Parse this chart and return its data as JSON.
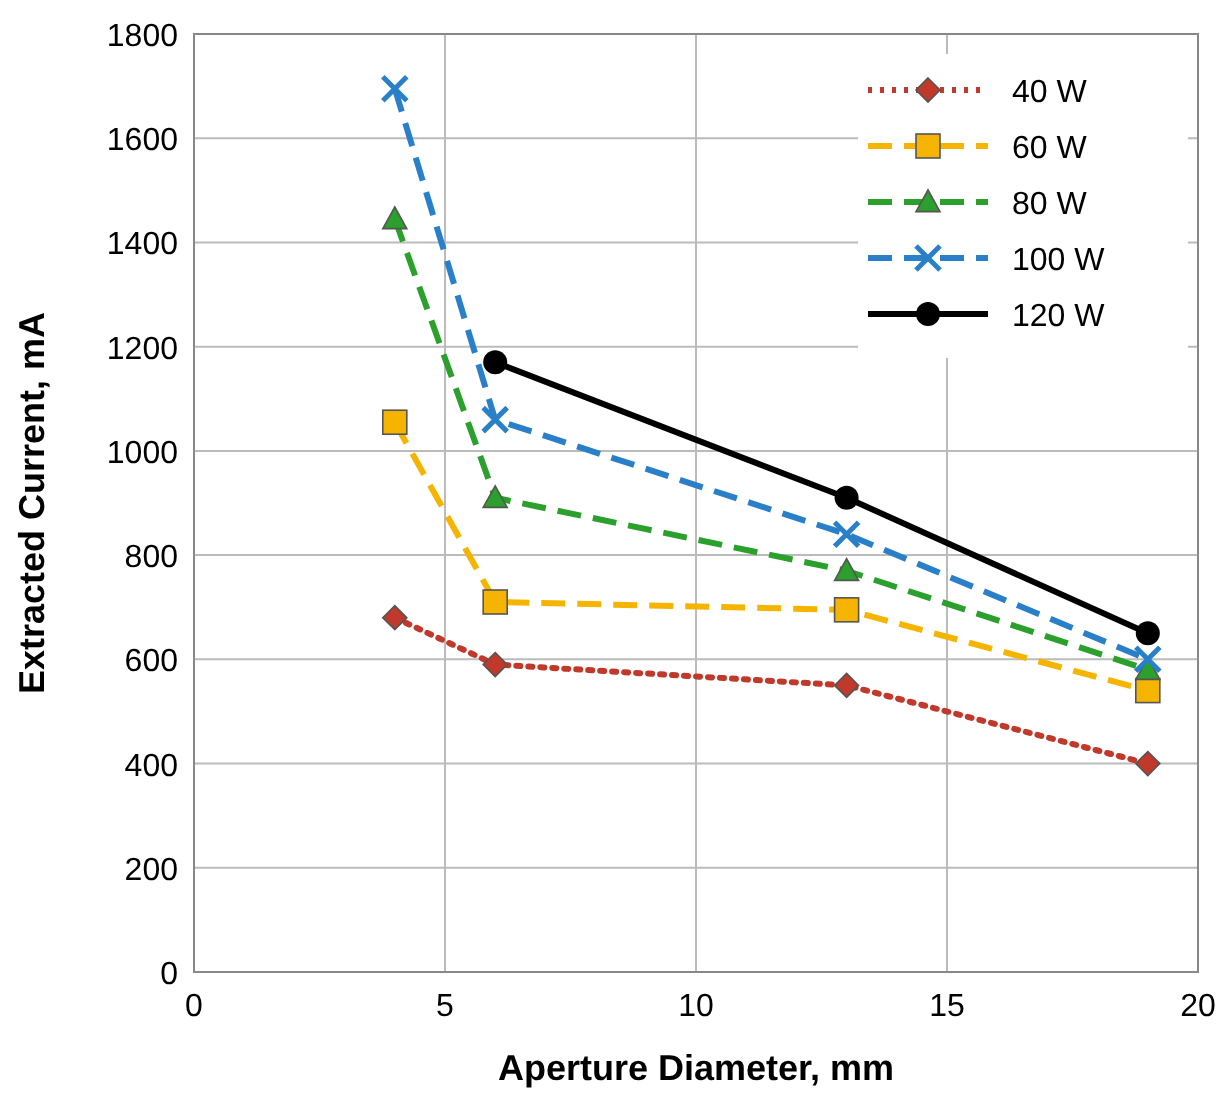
{
  "chart_data": {
    "type": "line",
    "xlabel": "Aperture Diameter, mm",
    "ylabel": "Extracted Current, mA",
    "xlim": [
      0,
      20
    ],
    "xticks": [
      0,
      5,
      10,
      15,
      20
    ],
    "ylim": [
      0,
      1800
    ],
    "yticks": [
      0,
      200,
      400,
      600,
      800,
      1000,
      1200,
      1400,
      1600,
      1800
    ],
    "grid": true,
    "legend": "top right",
    "series": [
      {
        "name": "40 W",
        "color": "#c0392b",
        "x": [
          4,
          6,
          13,
          19
        ],
        "values": [
          680,
          590,
          550,
          400
        ],
        "marker": "diamond",
        "line_style": "dotted"
      },
      {
        "name": "60 W",
        "color": "#f5b400",
        "x": [
          4,
          6,
          13,
          19
        ],
        "values": [
          1055,
          710,
          695,
          540
        ],
        "marker": "square",
        "line_style": "dashed"
      },
      {
        "name": "80 W",
        "color": "#2ca02c",
        "x": [
          4,
          6,
          13,
          19
        ],
        "values": [
          1445,
          910,
          770,
          580
        ],
        "marker": "triangle",
        "line_style": "dashed"
      },
      {
        "name": "100 W",
        "color": "#2a7fc9",
        "x": [
          4,
          6,
          13,
          19
        ],
        "values": [
          1695,
          1060,
          840,
          600
        ],
        "marker": "cross",
        "line_style": "dashed"
      },
      {
        "name": "120 W",
        "color": "#000000",
        "x": [
          6,
          13,
          19
        ],
        "values": [
          1170,
          910,
          650
        ],
        "marker": "circle",
        "line_style": "solid"
      }
    ]
  }
}
